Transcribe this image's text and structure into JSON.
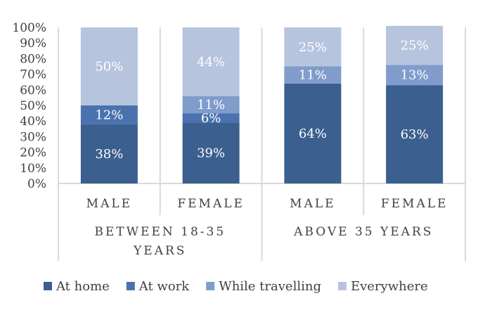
{
  "chart_data": {
    "type": "bar",
    "stacked": true,
    "percent_stacked": true,
    "groups": [
      {
        "label_lines": [
          "BETWEEN 18-35",
          "YEARS"
        ],
        "categories": [
          "MALE",
          "FEMALE"
        ]
      },
      {
        "label_lines": [
          "ABOVE 35 YEARS"
        ],
        "categories": [
          "MALE",
          "FEMALE"
        ]
      }
    ],
    "categories": [
      "MALE",
      "FEMALE",
      "MALE",
      "FEMALE"
    ],
    "series": [
      {
        "name": "At home",
        "color": "#3b5f8f",
        "values": [
          38,
          39,
          64,
          63
        ],
        "labels": [
          "38%",
          "39%",
          "64%",
          "63%"
        ]
      },
      {
        "name": "At work",
        "color": "#4a72ae",
        "values": [
          12,
          6,
          0,
          0
        ],
        "labels": [
          "12%",
          "6%",
          "",
          ""
        ]
      },
      {
        "name": "While travelling",
        "color": "#7f9ccb",
        "values": [
          0,
          11,
          11,
          13
        ],
        "labels": [
          "",
          "11%",
          "11%",
          "13%"
        ]
      },
      {
        "name": "Everywhere",
        "color": "#b6c4de",
        "values": [
          50,
          44,
          25,
          25
        ],
        "labels": [
          "50%",
          "44%",
          "25%",
          "25%"
        ]
      }
    ],
    "yticks": [
      "0%",
      "10%",
      "20%",
      "30%",
      "40%",
      "50%",
      "60%",
      "70%",
      "80%",
      "90%",
      "100%"
    ],
    "ylim": [
      0,
      100
    ],
    "grid": false,
    "legend": "bottom"
  }
}
